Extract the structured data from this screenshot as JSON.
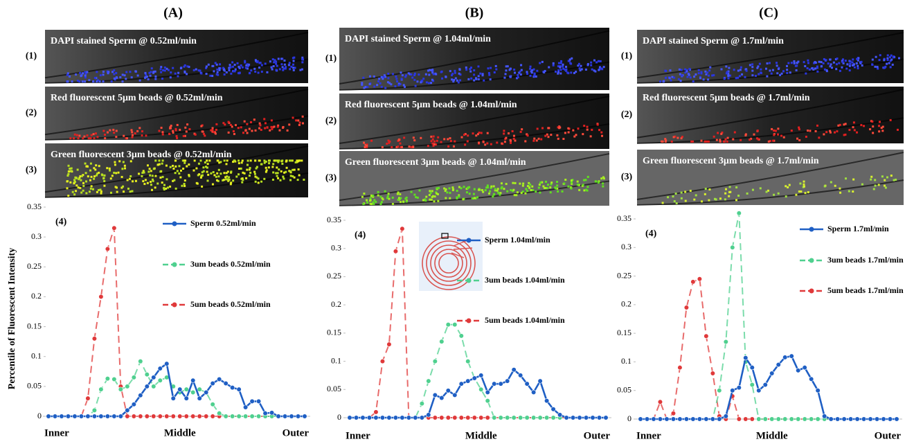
{
  "panels": [
    {
      "label": "(A)",
      "images": [
        {
          "row": "(1)",
          "caption": "DAPI stained Sperm @ 0.52ml/min"
        },
        {
          "row": "(2)",
          "caption": "Red fluorescent  5μm beads @ 0.52ml/min"
        },
        {
          "row": "(3)",
          "caption": "Green fluorescent  3μm beads @ 0.52ml/min"
        }
      ]
    },
    {
      "label": "(B)",
      "images": [
        {
          "row": "(1)",
          "caption": "DAPI stained Sperm @ 1.04ml/min"
        },
        {
          "row": "(2)",
          "caption": "Red fluorescent  5μm beads @ 1.04ml/min"
        },
        {
          "row": "(3)",
          "caption": "Green fluorescent  3μm beads @ 1.04ml/min"
        }
      ]
    },
    {
      "label": "(C)",
      "images": [
        {
          "row": "(1)",
          "caption": "DAPI stained Sperm @ 1.7ml/min"
        },
        {
          "row": "(2)",
          "caption": "Red fluorescent  5μm beads @ 1.7ml/min"
        },
        {
          "row": "(3)",
          "caption": "Green fluorescent  3μm beads @ 1.7ml/min"
        }
      ]
    }
  ],
  "chart_data": [
    {
      "type": "line",
      "annotation": "(4)",
      "y_label": "Percentile of Fluorescent Intensity",
      "categories": [
        "Inner",
        null,
        null,
        null,
        null,
        null,
        null,
        null,
        null,
        null,
        null,
        null,
        null,
        null,
        null,
        null,
        null,
        null,
        null,
        null,
        "Middle",
        null,
        null,
        null,
        null,
        null,
        null,
        null,
        null,
        null,
        null,
        null,
        null,
        null,
        null,
        null,
        null,
        null,
        null,
        "Outer"
      ],
      "ylim": [
        0,
        0.35
      ],
      "yticks": [
        0,
        0.05,
        0.1,
        0.15,
        0.2,
        0.25,
        0.3,
        0.35
      ],
      "series": [
        {
          "name": "Sperm 0.52ml/min",
          "color": "#1f5fc4",
          "line_style": "solid",
          "values": [
            0,
            0,
            0,
            0,
            0,
            0,
            0,
            0,
            0,
            0,
            0,
            0,
            0.01,
            0.02,
            0.035,
            0.05,
            0.065,
            0.08,
            0.088,
            0.03,
            0.045,
            0.03,
            0.06,
            0.03,
            0.04,
            0.055,
            0.062,
            0.055,
            0.048,
            0.045,
            0.015,
            0.025,
            0.025,
            0.005,
            0.006,
            0,
            0,
            0,
            0,
            0
          ]
        },
        {
          "name": "3um beads 0.52ml/min",
          "color": "#4fd08f",
          "line_style": "dashed",
          "values": [
            0,
            0,
            0,
            0,
            0,
            0,
            0,
            0.01,
            0.045,
            0.063,
            0.062,
            0.045,
            0.05,
            0.065,
            0.092,
            0.07,
            0.05,
            0.06,
            0.065,
            0.05,
            0.04,
            0.045,
            0.04,
            0.045,
            0.04,
            0.02,
            0.005,
            0,
            0,
            0,
            0,
            0,
            0,
            0,
            0,
            0,
            0,
            0,
            0,
            0
          ]
        },
        {
          "name": "5um beads 0.52ml/min",
          "color": "#e0393a",
          "line_style": "dashed",
          "values": [
            0,
            0,
            0,
            0,
            0,
            0,
            0.03,
            0.13,
            0.2,
            0.28,
            0.315,
            0.05,
            0,
            0,
            0,
            0,
            0,
            0,
            0,
            0,
            0,
            0,
            0,
            0,
            0,
            0,
            0,
            0,
            0,
            0,
            0,
            0,
            0,
            0,
            0,
            0,
            0,
            0,
            0,
            0
          ]
        }
      ]
    },
    {
      "type": "line",
      "annotation": "(4)",
      "categories": [
        "Inner",
        null,
        null,
        null,
        null,
        null,
        null,
        null,
        null,
        null,
        null,
        null,
        null,
        null,
        null,
        null,
        null,
        null,
        null,
        null,
        "Middle",
        null,
        null,
        null,
        null,
        null,
        null,
        null,
        null,
        null,
        null,
        null,
        null,
        null,
        null,
        null,
        null,
        null,
        null,
        "Outer"
      ],
      "ylim": [
        0,
        0.35
      ],
      "yticks": [
        0,
        0.05,
        0.1,
        0.15,
        0.2,
        0.25,
        0.3,
        0.35
      ],
      "series": [
        {
          "name": "Sperm 1.04ml/min",
          "color": "#1f5fc4",
          "line_style": "solid",
          "values": [
            0,
            0,
            0,
            0,
            0,
            0,
            0,
            0,
            0,
            0,
            0,
            0,
            0.005,
            0.04,
            0.035,
            0.048,
            0.04,
            0.06,
            0.065,
            0.07,
            0.075,
            0.045,
            0.06,
            0.06,
            0.065,
            0.085,
            0.075,
            0.06,
            0.045,
            0.065,
            0.03,
            0.015,
            0.005,
            0,
            0,
            0,
            0,
            0,
            0,
            0
          ]
        },
        {
          "name": "3um beads 1.04ml/min",
          "color": "#4fd08f",
          "line_style": "dashed",
          "values": [
            0,
            0,
            0,
            0,
            0,
            0,
            0,
            0,
            0,
            0,
            0,
            0.025,
            0.065,
            0.1,
            0.135,
            0.165,
            0.165,
            0.145,
            0.1,
            0.07,
            0.05,
            0.03,
            0,
            0,
            0,
            0,
            0,
            0,
            0,
            0,
            0,
            0,
            0,
            0,
            0,
            0,
            0,
            0,
            0,
            0
          ]
        },
        {
          "name": "5um beads 1.04ml/min",
          "color": "#e0393a",
          "line_style": "dashed",
          "values": [
            0,
            0,
            0,
            0,
            0.01,
            0.1,
            0.13,
            0.295,
            0.335,
            0,
            0,
            0,
            0,
            0,
            0,
            0,
            0,
            0,
            0,
            0,
            0,
            0,
            0,
            0,
            0,
            0,
            0,
            0,
            0,
            0,
            0,
            0,
            0,
            0,
            0,
            0,
            0,
            0,
            0,
            0
          ]
        }
      ]
    },
    {
      "type": "line",
      "annotation": "(4)",
      "categories": [
        "Inner",
        null,
        null,
        null,
        null,
        null,
        null,
        null,
        null,
        null,
        null,
        null,
        null,
        null,
        null,
        null,
        null,
        null,
        null,
        null,
        "Middle",
        null,
        null,
        null,
        null,
        null,
        null,
        null,
        null,
        null,
        null,
        null,
        null,
        null,
        null,
        null,
        null,
        null,
        null,
        "Outer"
      ],
      "ylim": [
        0,
        0.35
      ],
      "yticks": [
        0,
        0.05,
        0.1,
        0.15,
        0.2,
        0.25,
        0.3,
        0.35
      ],
      "series": [
        {
          "name": "Sperm 1.7ml/min",
          "color": "#1f5fc4",
          "line_style": "solid",
          "values": [
            0,
            0,
            0,
            0,
            0,
            0,
            0,
            0,
            0,
            0,
            0,
            0,
            0,
            0.005,
            0.05,
            0.055,
            0.107,
            0.09,
            0.05,
            0.06,
            0.08,
            0.095,
            0.108,
            0.11,
            0.085,
            0.09,
            0.07,
            0.05,
            0.005,
            0,
            0,
            0,
            0,
            0,
            0,
            0,
            0,
            0,
            0,
            0
          ]
        },
        {
          "name": "3um beads 1.7ml/min",
          "color": "#4fd08f",
          "line_style": "dashed",
          "values": [
            0,
            0,
            0,
            0,
            0,
            0,
            0,
            0,
            0,
            0,
            0,
            0,
            0.05,
            0.135,
            0.3,
            0.36,
            0.1,
            0.06,
            0,
            0,
            0,
            0,
            0,
            0,
            0,
            0,
            0,
            0,
            0,
            0,
            0,
            0,
            0,
            0,
            0,
            0,
            0,
            0,
            0,
            0
          ]
        },
        {
          "name": "5um beads 1.7ml/min",
          "color": "#e0393a",
          "line_style": "dashed",
          "values": [
            0,
            0,
            0,
            0.03,
            0,
            0.01,
            0.09,
            0.195,
            0.24,
            0.245,
            0.145,
            0.08,
            0.005,
            0,
            0.04,
            0,
            0,
            0,
            0,
            0,
            0,
            0,
            0,
            0,
            0,
            0,
            0,
            0,
            0,
            0,
            0,
            0,
            0,
            0,
            0,
            0,
            0,
            0,
            0,
            0
          ]
        }
      ]
    }
  ]
}
